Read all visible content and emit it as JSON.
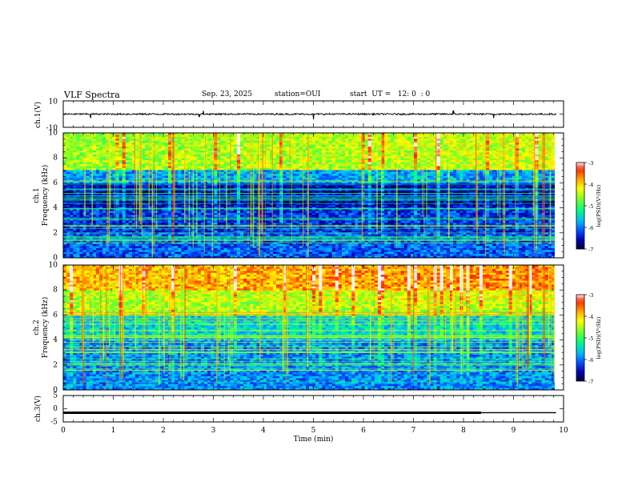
{
  "header": {
    "title": "VLF Spectra",
    "date": "Sep. 23, 2025",
    "station": "station=OUI",
    "start_time": "start  UT =   12: 0  : 0"
  },
  "colorbar": {
    "label": "log(PSD)(V²/Hz)",
    "ticks": [
      -3,
      -4,
      -5,
      -6,
      -7
    ],
    "range": [
      -7,
      -3
    ],
    "colors": [
      "#000040",
      "#0000b0",
      "#0050ff",
      "#00c8ff",
      "#00ff80",
      "#ffff00",
      "#ff8000",
      "#ff0000",
      "#ffffff"
    ]
  },
  "chart_data": [
    {
      "type": "line",
      "panel": "ch1-waveform",
      "ylabel": "ch.1(V)",
      "ytick_labels": [
        "10",
        "-10"
      ],
      "ylim": [
        -10,
        10
      ],
      "xlim": [
        0,
        10
      ],
      "baseline": 0,
      "noise_amplitude": 0.6,
      "spikes": [
        {
          "x": 0.55,
          "y": -3
        },
        {
          "x": 2.72,
          "y": -2
        },
        {
          "x": 2.8,
          "y": 2.5
        },
        {
          "x": 5.0,
          "y": -4
        },
        {
          "x": 7.8,
          "y": 2.5
        },
        {
          "x": 8.6,
          "y": -3
        }
      ]
    },
    {
      "type": "heatmap",
      "panel": "ch1-spectrogram",
      "ylabel": [
        "ch.1",
        "Frequency (kHz)"
      ],
      "ytick_labels": [
        "0",
        "2",
        "4",
        "6",
        "8",
        "10"
      ],
      "ylim": [
        0,
        10
      ],
      "xlim": [
        0,
        10
      ],
      "zlim": [
        -7,
        -3
      ],
      "band_profile": [
        {
          "f_min": 0,
          "f_max": 2,
          "level": -6.1
        },
        {
          "f_min": 2,
          "f_max": 4,
          "level": -6.3
        },
        {
          "f_min": 4,
          "f_max": 6,
          "level": -6.6
        },
        {
          "f_min": 6,
          "f_max": 7,
          "level": -5.8
        },
        {
          "f_min": 7,
          "f_max": 10,
          "level": -4.6
        }
      ]
    },
    {
      "type": "heatmap",
      "panel": "ch2-spectrogram",
      "ylabel": [
        "ch.2",
        "Frequency (kHz)"
      ],
      "ytick_labels": [
        "0",
        "2",
        "4",
        "6",
        "8",
        "10"
      ],
      "ylim": [
        0,
        10
      ],
      "xlim": [
        0,
        10
      ],
      "zlim": [
        -7,
        -3
      ],
      "band_profile": [
        {
          "f_min": 0,
          "f_max": 2,
          "level": -5.9
        },
        {
          "f_min": 2,
          "f_max": 4,
          "level": -5.9
        },
        {
          "f_min": 4,
          "f_max": 6,
          "level": -5.5
        },
        {
          "f_min": 6,
          "f_max": 8,
          "level": -4.5
        },
        {
          "f_min": 8,
          "f_max": 10,
          "level": -3.9
        }
      ]
    },
    {
      "type": "line",
      "panel": "ch3-waveform",
      "ylabel": "ch.3(V)",
      "ytick_labels": [
        "5",
        "0",
        "-5"
      ],
      "ylim": [
        -5,
        5
      ],
      "xlim": [
        0,
        10
      ],
      "x": [
        0,
        8.35,
        8.35,
        9.85
      ],
      "y": [
        -1.5,
        -1.5,
        -1.5,
        -1.5
      ],
      "segments": [
        {
          "x_start": 0,
          "x_end": 8.35,
          "y": -1.5,
          "weight": "thick"
        },
        {
          "x_start": 8.35,
          "x_end": 9.85,
          "y": -1.5,
          "weight": "thin"
        }
      ],
      "xlabel": "Time (min)",
      "xtick_labels": [
        "0",
        "1",
        "2",
        "3",
        "4",
        "5",
        "6",
        "7",
        "8",
        "9",
        "10"
      ]
    }
  ]
}
